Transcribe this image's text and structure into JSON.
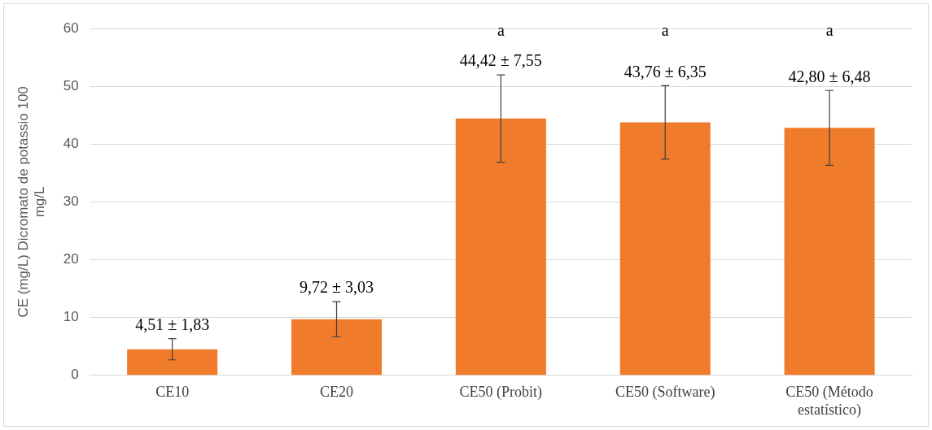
{
  "chart_data": {
    "type": "bar",
    "ylabel": "CE (mg/L) Dicromato de potassio 100 mg/L",
    "categories": [
      "CE10",
      "CE20",
      "CE50 (Probit)",
      "CE50 (Software)",
      "CE50 (Método estatístico)"
    ],
    "values": [
      4.51,
      9.72,
      44.42,
      43.76,
      42.8
    ],
    "errors": [
      1.83,
      3.03,
      7.55,
      6.35,
      6.48
    ],
    "value_labels": [
      "4,51 ± 1,83",
      "9,72 ± 3,03",
      "44,42 ± 7,55",
      "43,76 ± 6,35",
      "42,80 ± 6,48"
    ],
    "color": "#f07b2b",
    "ylim": [
      0,
      60
    ],
    "yticks": [
      0,
      10,
      20,
      30,
      40,
      50,
      60
    ],
    "grid": "y",
    "legend": false,
    "annotations": [
      "a",
      "a",
      "a"
    ]
  }
}
